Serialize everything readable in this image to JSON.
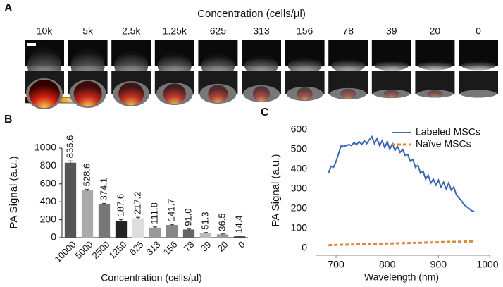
{
  "panel_a": {
    "panel_label": "A",
    "title": "Concentration (cells/µl)",
    "columns": [
      "10k",
      "5k",
      "2.5k",
      "1.25k",
      "625",
      "313",
      "156",
      "78",
      "39",
      "20",
      "0"
    ]
  },
  "chart_data": [
    {
      "type": "bar",
      "panel_label": "B",
      "categories": [
        "10000",
        "5000",
        "2500",
        "1250",
        "625",
        "313",
        "156",
        "78",
        "39",
        "20",
        "0"
      ],
      "values": [
        836.6,
        528.6,
        374.1,
        187.6,
        217.2,
        111.8,
        141.7,
        91.0,
        51.3,
        36.5,
        14.4
      ],
      "value_labels": [
        "836.6",
        "528.6",
        "374.1",
        "187.6",
        "217.2",
        "111.8",
        "141.7",
        "91.0",
        "51.3",
        "36.5",
        "14.4"
      ],
      "errors": [
        20,
        12,
        8,
        14,
        10,
        8,
        6,
        5,
        6,
        5,
        3
      ],
      "colors": [
        "#555555",
        "#aaaaaa",
        "#777777",
        "#222222",
        "#dddddd",
        "#999999",
        "#888888",
        "#666666",
        "#bbbbbb",
        "#999999",
        "#444444"
      ],
      "xlabel": "Concentration (cells/µl)",
      "ylabel": "PA  Signal (a.u.)",
      "ylim": [
        0,
        1000
      ],
      "yticks": [
        0,
        200,
        400,
        600,
        800,
        1000
      ]
    },
    {
      "type": "line",
      "panel_label": "C",
      "x": [
        685,
        690,
        695,
        700,
        705,
        710,
        715,
        720,
        725,
        730,
        735,
        740,
        745,
        750,
        755,
        760,
        765,
        770,
        775,
        780,
        785,
        790,
        795,
        800,
        805,
        810,
        815,
        820,
        825,
        830,
        835,
        840,
        845,
        850,
        855,
        860,
        865,
        870,
        875,
        880,
        885,
        890,
        895,
        900,
        905,
        910,
        915,
        920,
        925,
        930,
        935,
        940,
        945,
        950,
        955,
        960,
        965,
        970
      ],
      "series": [
        {
          "name": "Labeled MSCs",
          "color": "#3b67b2",
          "dash": false,
          "values": [
            380,
            415,
            410,
            440,
            480,
            520,
            515,
            520,
            525,
            520,
            535,
            525,
            540,
            525,
            545,
            530,
            550,
            565,
            530,
            555,
            520,
            545,
            510,
            540,
            500,
            530,
            495,
            515,
            485,
            500,
            470,
            475,
            440,
            450,
            410,
            420,
            380,
            390,
            350,
            370,
            330,
            350,
            320,
            345,
            310,
            335,
            300,
            330,
            295,
            310,
            270,
            255,
            240,
            220,
            210,
            200,
            190,
            185
          ]
        },
        {
          "name": "Naïve MSCs",
          "color": "#d9893a",
          "dash": true,
          "values": [
            15,
            16,
            16,
            17,
            17,
            18,
            18,
            18,
            19,
            19,
            19,
            20,
            20,
            20,
            21,
            21,
            21,
            22,
            22,
            22,
            23,
            23,
            23,
            24,
            24,
            24,
            25,
            25,
            25,
            26,
            26,
            26,
            27,
            27,
            27,
            28,
            28,
            28,
            29,
            29,
            29,
            30,
            30,
            30,
            31,
            31,
            31,
            32,
            32,
            32,
            33,
            33,
            33,
            34,
            34,
            34,
            35,
            35
          ]
        }
      ],
      "xlabel": "Wavelength (nm)",
      "ylabel": "PA  Signal (a.u.)",
      "xlim": [
        660,
        1000
      ],
      "xticks": [
        700,
        800,
        900,
        1000
      ],
      "ylim": [
        0,
        600
      ],
      "yticks": [
        0,
        100,
        200,
        300,
        400,
        500,
        600
      ],
      "legend": "top-right"
    }
  ]
}
